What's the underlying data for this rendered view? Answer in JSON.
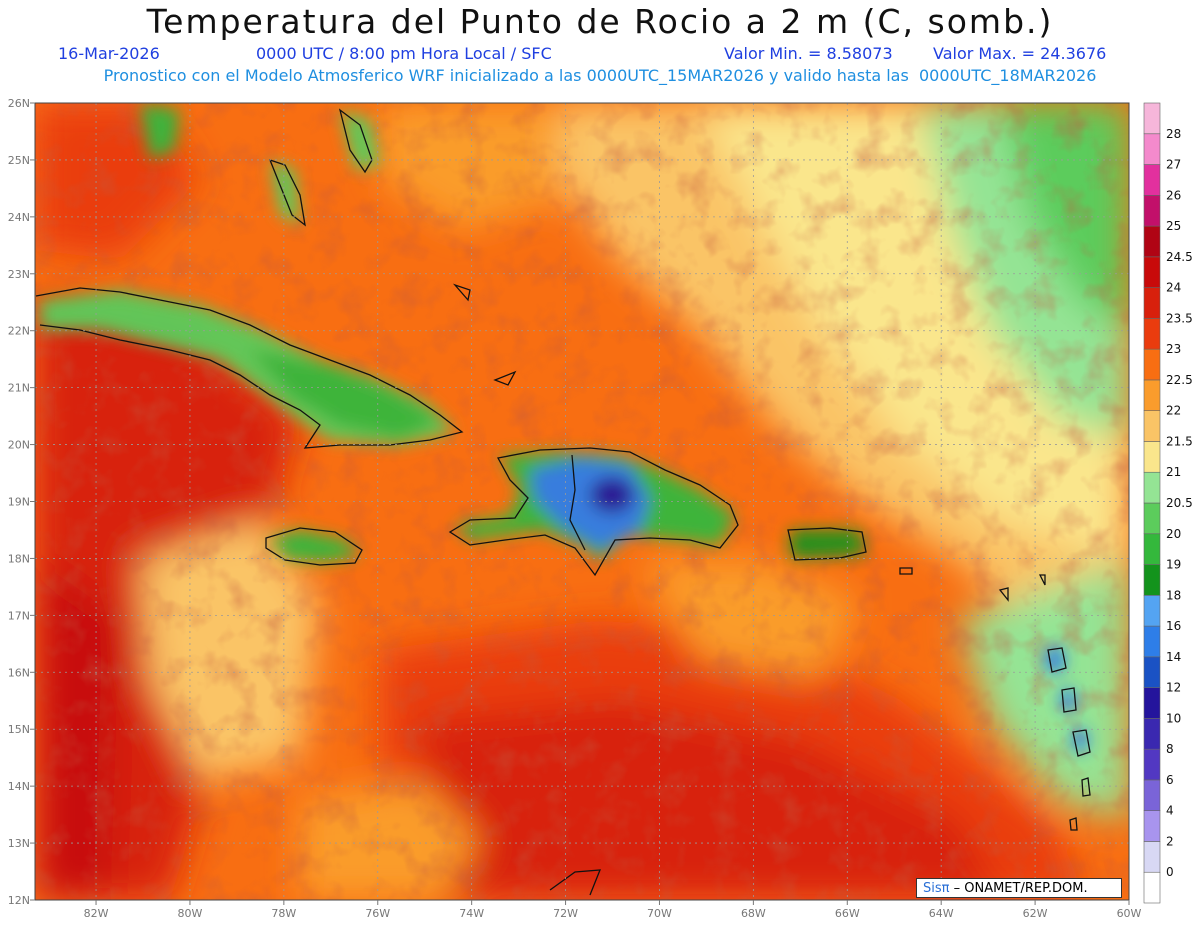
{
  "header": {
    "title": "Temperatura del Punto de Rocio a 2 m (C, somb.)",
    "date": "16-Mar-2026",
    "time": "0000 UTC / 8:00 pm Hora Local / SFC",
    "valmin": "Valor Min. = 8.58073",
    "valmax": "Valor Max. = 24.3676",
    "subtitle": "Pronostico con el Modelo Atmosferico WRF inicializado a las 0000UTC_15MAR2026 y valido hasta las  0000UTC_18MAR2026"
  },
  "map": {
    "lat_labels": [
      "26N",
      "25N",
      "24N",
      "23N",
      "22N",
      "21N",
      "20N",
      "19N",
      "18N",
      "17N",
      "16N",
      "15N",
      "14N",
      "13N",
      "12N"
    ],
    "lon_labels": [
      "82W",
      "80W",
      "78W",
      "76W",
      "74W",
      "72W",
      "70W",
      "68W",
      "66W",
      "64W",
      "62W",
      "60W"
    ],
    "lat_range": [
      12,
      26
    ],
    "lon_range": [
      -83.3,
      -60
    ],
    "grid": true
  },
  "colorbar": {
    "labels": [
      "0",
      "2",
      "4",
      "6",
      "8",
      "10",
      "12",
      "14",
      "16",
      "18",
      "19",
      "20",
      "20.5",
      "21",
      "21.5",
      "22",
      "22.5",
      "23",
      "23.5",
      "24",
      "24.5",
      "25",
      "26",
      "27",
      "28"
    ],
    "colors": [
      "#ffffff",
      "#d8d8f4",
      "#a894ee",
      "#7a64d8",
      "#5238c2",
      "#3a28b0",
      "#24149c",
      "#1a52c4",
      "#2e7ee8",
      "#54a4f2",
      "#13931c",
      "#34b83c",
      "#5ccc5c",
      "#94e494",
      "#fae68c",
      "#fac466",
      "#fa9c2c",
      "#f86e12",
      "#ea3c0e",
      "#d8200c",
      "#c80a0a",
      "#b00414",
      "#c2106a",
      "#e2309e",
      "#f48acc",
      "#f6b6da"
    ]
  },
  "credit": {
    "logo": "Sisπ",
    "text": "– ONAMET/REP.DOM."
  }
}
